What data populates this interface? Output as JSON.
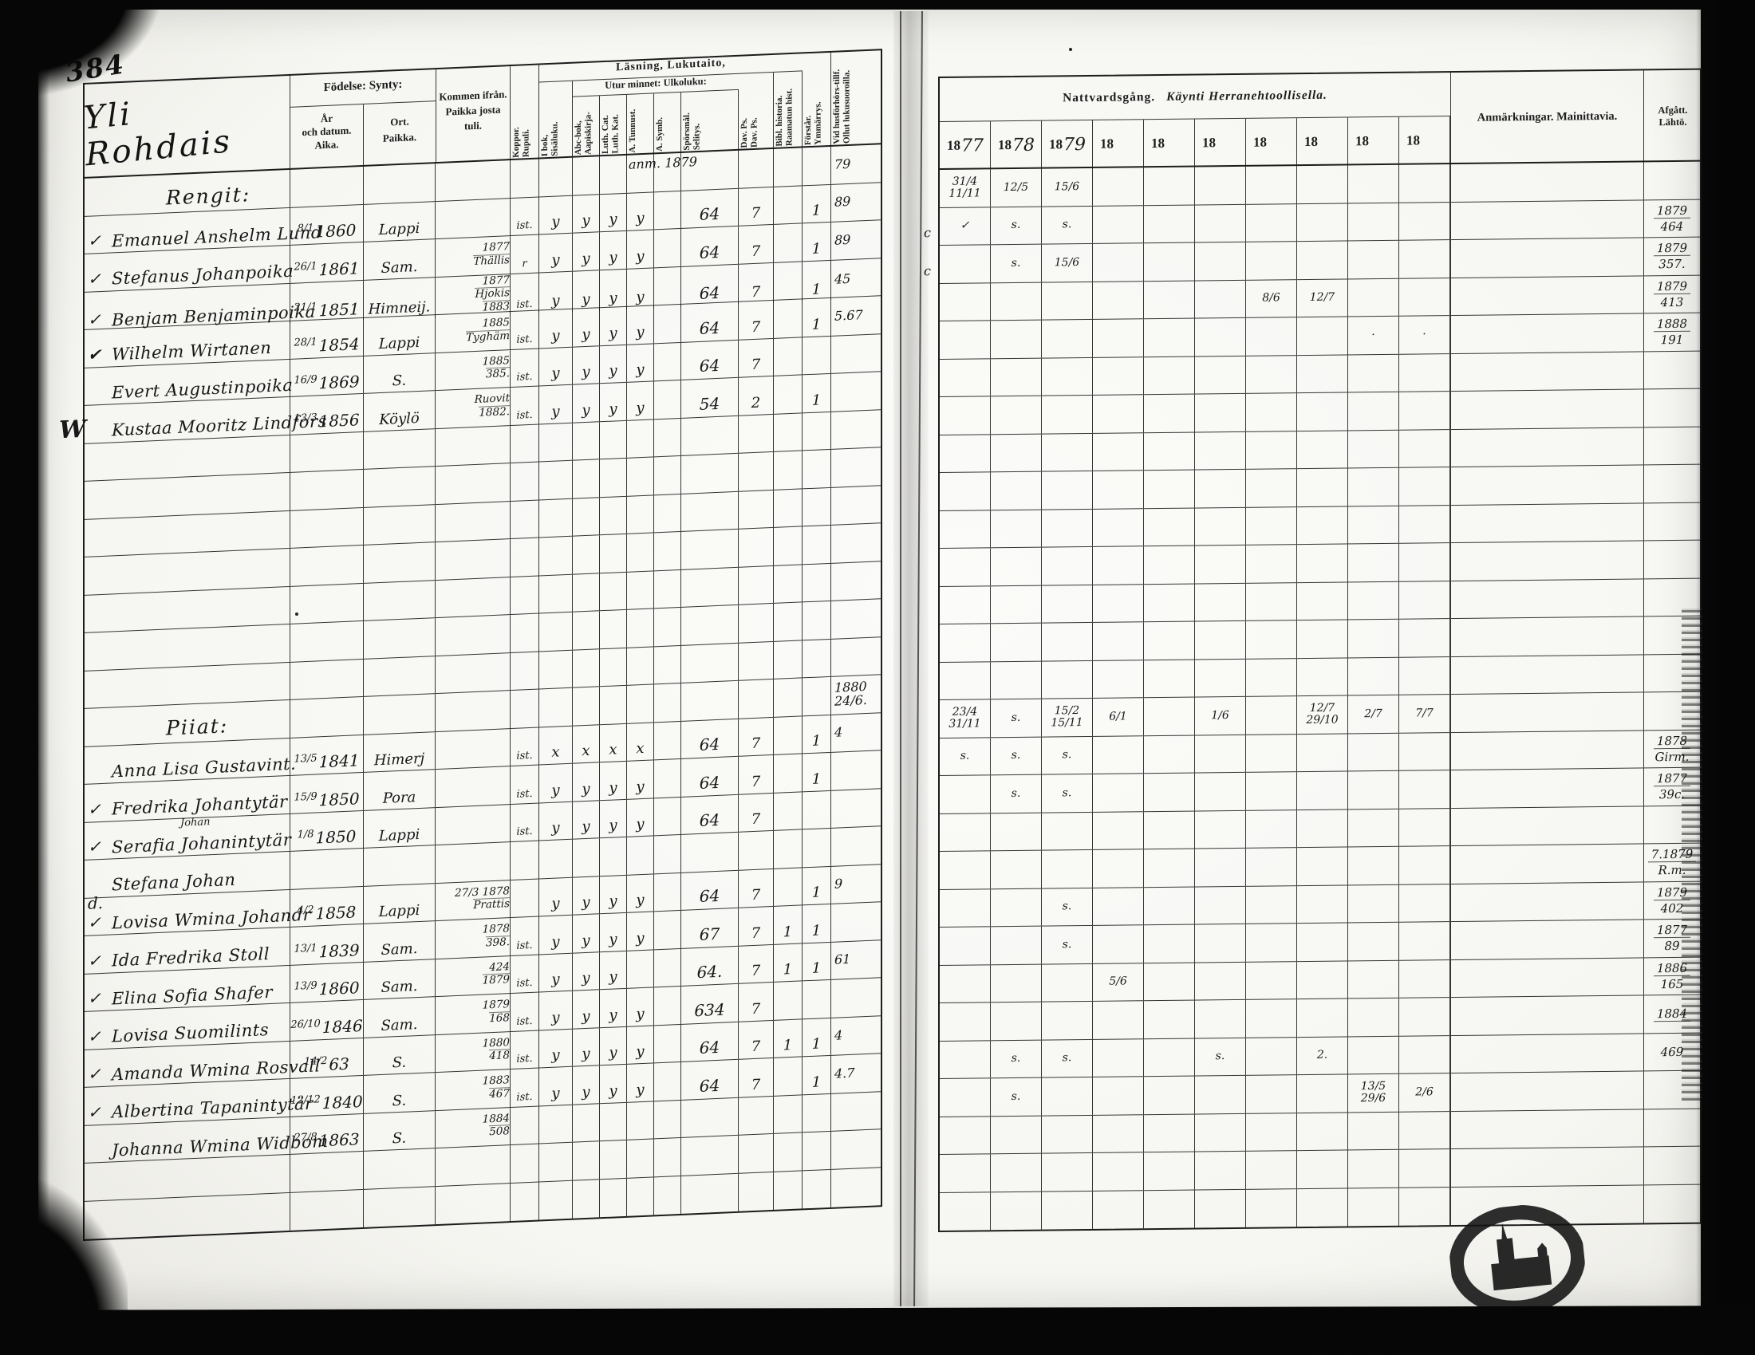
{
  "page": {
    "number": "384"
  },
  "left_page": {
    "title_script": "Yli Rohdais",
    "header": {
      "fodelse": "Födelse:   Synty:",
      "ar": "År\noch datum.\nAika.",
      "ort": "Ort.\nPaikka.",
      "kommen": "Kommen ifrån.\nPaikka josta\ntuli.",
      "lasning": "Läsning,  Lukutaito,",
      "utur": "Utur minnet:   Ulkoluku:",
      "cols": [
        "Koppor.\nRupuli.",
        "I bok,\nSisäluku.",
        "Abc-bok,\nAapiskirja-",
        "Luth. Cat.\nLuth. Kat.",
        "A. Tunnust.",
        "A. Symb.",
        "Spörsmål.\nSelitys.",
        "Dav. Ps.\nDav. Ps.",
        "Bibl. historia.\nRaamatun hist.",
        "Förstår.\nYmmärrys.",
        "Vid husförhörs-tillf.\nOllut lukusuoroilla."
      ]
    },
    "rows": [
      {
        "t": "h",
        "n": "Rengit:",
        "note": "anm. 1879",
        "v": "79"
      },
      {
        "t": "e",
        "m": "✓",
        "n": "Emanuel Anshelm Lund",
        "b": [
          "8/1",
          "1860"
        ],
        "o": "Lappi",
        "k": [],
        "x": [
          "ist.",
          "y",
          "y",
          "y",
          "y",
          "",
          "64",
          "7",
          "",
          "1"
        ],
        "v": "89"
      },
      {
        "t": "e",
        "m": "✓",
        "n": "Stefanus Johanpoika",
        "b": [
          "26/1",
          "1861"
        ],
        "o": "Sam.",
        "k": [
          "1877",
          "Thällis"
        ],
        "x": [
          "r",
          "y",
          "y",
          "y",
          "y",
          "",
          "64",
          "7",
          "",
          "1"
        ],
        "v": "89"
      },
      {
        "t": "e",
        "m": "✓",
        "n": "Benjam Benjaminpoika",
        "b": [
          "21/1",
          "1851"
        ],
        "o": "Himneij.",
        "k": [
          "1877",
          "Hjokis",
          "1883"
        ],
        "x": [
          "ist.",
          "y",
          "y",
          "y",
          "y",
          "",
          "64",
          "7",
          "",
          "1"
        ],
        "v": "45"
      },
      {
        "t": "e",
        "m": "✔",
        "n": "Wilhelm Wirtanen",
        "b": [
          "28/1",
          "1854"
        ],
        "o": "Lappi",
        "k": [
          "1885",
          "Tyghäm"
        ],
        "x": [
          "ist.",
          "y",
          "y",
          "y",
          "y",
          "",
          "64",
          "7",
          "",
          "1"
        ],
        "v": "5.67"
      },
      {
        "t": "e",
        "m": "",
        "n": "Evert Augustinpoika",
        "b": [
          "16/9",
          "1869"
        ],
        "o": "S.",
        "k": [
          "1885",
          "385."
        ],
        "x": [
          "ist.",
          "y",
          "y",
          "y",
          "y",
          "",
          "64",
          "7",
          "",
          ""
        ],
        "v": ""
      },
      {
        "t": "e",
        "m": "W",
        "n": "Kustaa Mooritz Lindfors",
        "b": [
          "13/3",
          "1856"
        ],
        "o": "Köylö",
        "k": [
          "Ruovit",
          "1882."
        ],
        "x": [
          "ist.",
          "y",
          "y",
          "y",
          "y",
          "",
          "54",
          "2",
          "",
          "1"
        ],
        "v": ""
      },
      {
        "t": "b"
      },
      {
        "t": "b"
      },
      {
        "t": "b"
      },
      {
        "t": "b"
      },
      {
        "t": "b"
      },
      {
        "t": "b"
      },
      {
        "t": "b"
      },
      {
        "t": "h",
        "n": "Piiat:",
        "note": "",
        "v": "1880\n24/6."
      },
      {
        "t": "e",
        "m": "",
        "n": "Anna Lisa Gustavint.",
        "b": [
          "13/5",
          "1841"
        ],
        "o": "Himerj",
        "k": [],
        "x": [
          "ist.",
          "x",
          "x",
          "x",
          "x",
          "",
          "64",
          "7",
          "",
          "1"
        ],
        "v": "4"
      },
      {
        "t": "e",
        "m": "✓",
        "n": "Fredrika Johantytär",
        "b": [
          "15/9",
          "1850"
        ],
        "o": "Pora",
        "k": [],
        "x": [
          "ist.",
          "y",
          "y",
          "y",
          "y",
          "",
          "64",
          "7",
          "",
          "1"
        ],
        "v": ""
      },
      {
        "t": "e",
        "m": "✓",
        "n": "Serafia Johanintytär",
        "ns": "Johan",
        "b": [
          "1/8",
          "1850"
        ],
        "o": "Lappi",
        "k": [],
        "x": [
          "ist.",
          "y",
          "y",
          "y",
          "y",
          "",
          "64",
          "7",
          "",
          ""
        ],
        "v": ""
      },
      {
        "t": "e",
        "m": "",
        "n": "Stefana Johan",
        "b": [],
        "o": "",
        "k": [],
        "x": [],
        "v": ""
      },
      {
        "t": "e",
        "m": "d. ✓",
        "n": "Lovisa Wmina Johandr",
        "b": [
          "4/2",
          "1858"
        ],
        "o": "Lappi",
        "k": [
          "27/3 1878",
          "Prattis"
        ],
        "x": [
          "",
          "y",
          "y",
          "y",
          "y",
          "",
          "64",
          "7",
          "",
          "1"
        ],
        "v": "9"
      },
      {
        "t": "e",
        "m": "✓",
        "n": "Ida Fredrika Stoll",
        "b": [
          "13/1",
          "1839"
        ],
        "o": "Sam.",
        "k": [
          "1878",
          "398."
        ],
        "x": [
          "ist.",
          "y",
          "y",
          "y",
          "y",
          "",
          "67",
          "7",
          "1",
          "1"
        ],
        "v": ""
      },
      {
        "t": "e",
        "m": "✓",
        "n": "Elina Sofia Shafer",
        "b": [
          "13/9",
          "1860"
        ],
        "o": "Sam.",
        "k": [
          "424",
          "1879"
        ],
        "x": [
          "ist.",
          "y",
          "y",
          "y",
          "",
          "",
          "64.",
          "7",
          "1",
          "1"
        ],
        "v": "61"
      },
      {
        "t": "e",
        "m": "✓",
        "n": "Lovisa Suomilints",
        "b": [
          "26/10",
          "1846"
        ],
        "o": "Sam.",
        "k": [
          "1879",
          "168"
        ],
        "x": [
          "ist.",
          "y",
          "y",
          "y",
          "y",
          "",
          "634",
          "7",
          "",
          ""
        ],
        "v": ""
      },
      {
        "t": "e",
        "m": "✓",
        "n": "Amanda Wmina Rosvall",
        "b": [
          "14/2",
          "63"
        ],
        "o": "S.",
        "k": [
          "1880",
          "418"
        ],
        "x": [
          "ist.",
          "y",
          "y",
          "y",
          "y",
          "",
          "64",
          "7",
          "1",
          "1"
        ],
        "v": "4"
      },
      {
        "t": "e",
        "m": "✓",
        "n": "Albertina Tapanintytär",
        "b": [
          "12/12",
          "1840"
        ],
        "o": "S.",
        "k": [
          "1883",
          "467"
        ],
        "x": [
          "ist.",
          "y",
          "y",
          "y",
          "y",
          "",
          "64",
          "7",
          "",
          "1"
        ],
        "v": "4.7"
      },
      {
        "t": "e",
        "m": "",
        "n": "Johanna Wmina Widbom",
        "b": [
          "27/8",
          "1863"
        ],
        "o": "S.",
        "k": [
          "1884",
          "508"
        ],
        "x": [],
        "v": ""
      },
      {
        "t": "b"
      },
      {
        "t": "b"
      }
    ]
  },
  "right_page": {
    "header_sv": "Nattvardsgång.",
    "header_fi": "Käynti Herranehtoollisella.",
    "years": [
      {
        "p": "18",
        "s": "77"
      },
      {
        "p": "18",
        "s": "78"
      },
      {
        "p": "18",
        "s": "79"
      },
      {
        "p": "18",
        "s": ""
      },
      {
        "p": "18",
        "s": ""
      },
      {
        "p": "18",
        "s": ""
      },
      {
        "p": "18",
        "s": ""
      },
      {
        "p": "18",
        "s": ""
      },
      {
        "p": "18",
        "s": ""
      },
      {
        "p": "18",
        "s": ""
      }
    ],
    "anm": "Anmärkningar.   Mainittavia.",
    "afg": "Afgått.\nLähtö.",
    "rows": [
      {
        "c": [
          "31/4 11/11",
          "12/5",
          "15/6",
          "",
          "",
          "",
          "",
          "",
          "",
          ""
        ],
        "a": []
      },
      {
        "m": "c",
        "c": [
          "✓",
          "s.",
          "s.",
          "",
          "",
          "",
          "",
          "",
          "",
          ""
        ],
        "a": [
          "1879",
          "464"
        ]
      },
      {
        "m": "c",
        "c": [
          "",
          "s.",
          "15/6",
          "",
          "",
          "",
          "",
          "",
          "",
          ""
        ],
        "a": [
          "1879",
          "357."
        ]
      },
      {
        "c": [
          "",
          "",
          "",
          "",
          "",
          "",
          "8/6",
          "12/7",
          "",
          ""
        ],
        "a": [
          "1879",
          "413"
        ]
      },
      {
        "c": [
          "",
          "",
          "",
          "",
          "",
          "",
          "",
          "",
          "·",
          "·"
        ],
        "a": [
          "1888",
          "191"
        ]
      },
      {
        "c": [],
        "a": []
      },
      {
        "c": [],
        "a": []
      },
      {
        "c": [],
        "a": []
      },
      {
        "c": [],
        "a": []
      },
      {
        "c": [],
        "a": []
      },
      {
        "c": [],
        "a": []
      },
      {
        "c": [],
        "a": []
      },
      {
        "c": [],
        "a": []
      },
      {
        "c": [],
        "a": []
      },
      {
        "c": [
          "23/4 31/11",
          "s.",
          "15/2 15/11",
          "6/1",
          "",
          "1/6",
          "",
          "12/7 29/10",
          "2/7",
          "7/7"
        ],
        "a": []
      },
      {
        "c": [
          "s.",
          "s.",
          "s.",
          "",
          "",
          "",
          "",
          "",
          "",
          ""
        ],
        "a": [
          "1878",
          "Girm."
        ]
      },
      {
        "c": [
          "",
          "s.",
          "s.",
          "",
          "",
          "",
          "",
          "",
          "",
          ""
        ],
        "a": [
          "1877",
          "39c."
        ]
      },
      {
        "c": [],
        "a": []
      },
      {
        "c": [],
        "a": [
          "7.1879",
          "R.m."
        ]
      },
      {
        "c": [
          "",
          "",
          "s.",
          "",
          "",
          "",
          "",
          "",
          "",
          ""
        ],
        "a": [
          "1879",
          "402"
        ]
      },
      {
        "c": [
          "",
          "",
          "s.",
          "",
          "",
          "",
          "",
          "",
          "",
          ""
        ],
        "a": [
          "1877",
          "89"
        ]
      },
      {
        "c": [
          "",
          "",
          "",
          "5/6",
          "",
          "",
          "",
          "",
          "",
          ""
        ],
        "a": [
          "1886",
          "165"
        ]
      },
      {
        "c": [],
        "a": [
          "1884",
          ""
        ]
      },
      {
        "c": [
          "",
          "s.",
          "s.",
          "",
          "",
          "s.",
          "",
          "2.",
          "",
          ""
        ],
        "a": [
          "",
          "469"
        ]
      },
      {
        "c": [
          "",
          "s.",
          "",
          "",
          "",
          "",
          "",
          "",
          "13/5 29/6",
          "2/6"
        ],
        "a": []
      },
      {
        "c": [],
        "a": []
      },
      {
        "c": [],
        "a": []
      },
      {
        "c": [],
        "a": []
      }
    ]
  }
}
